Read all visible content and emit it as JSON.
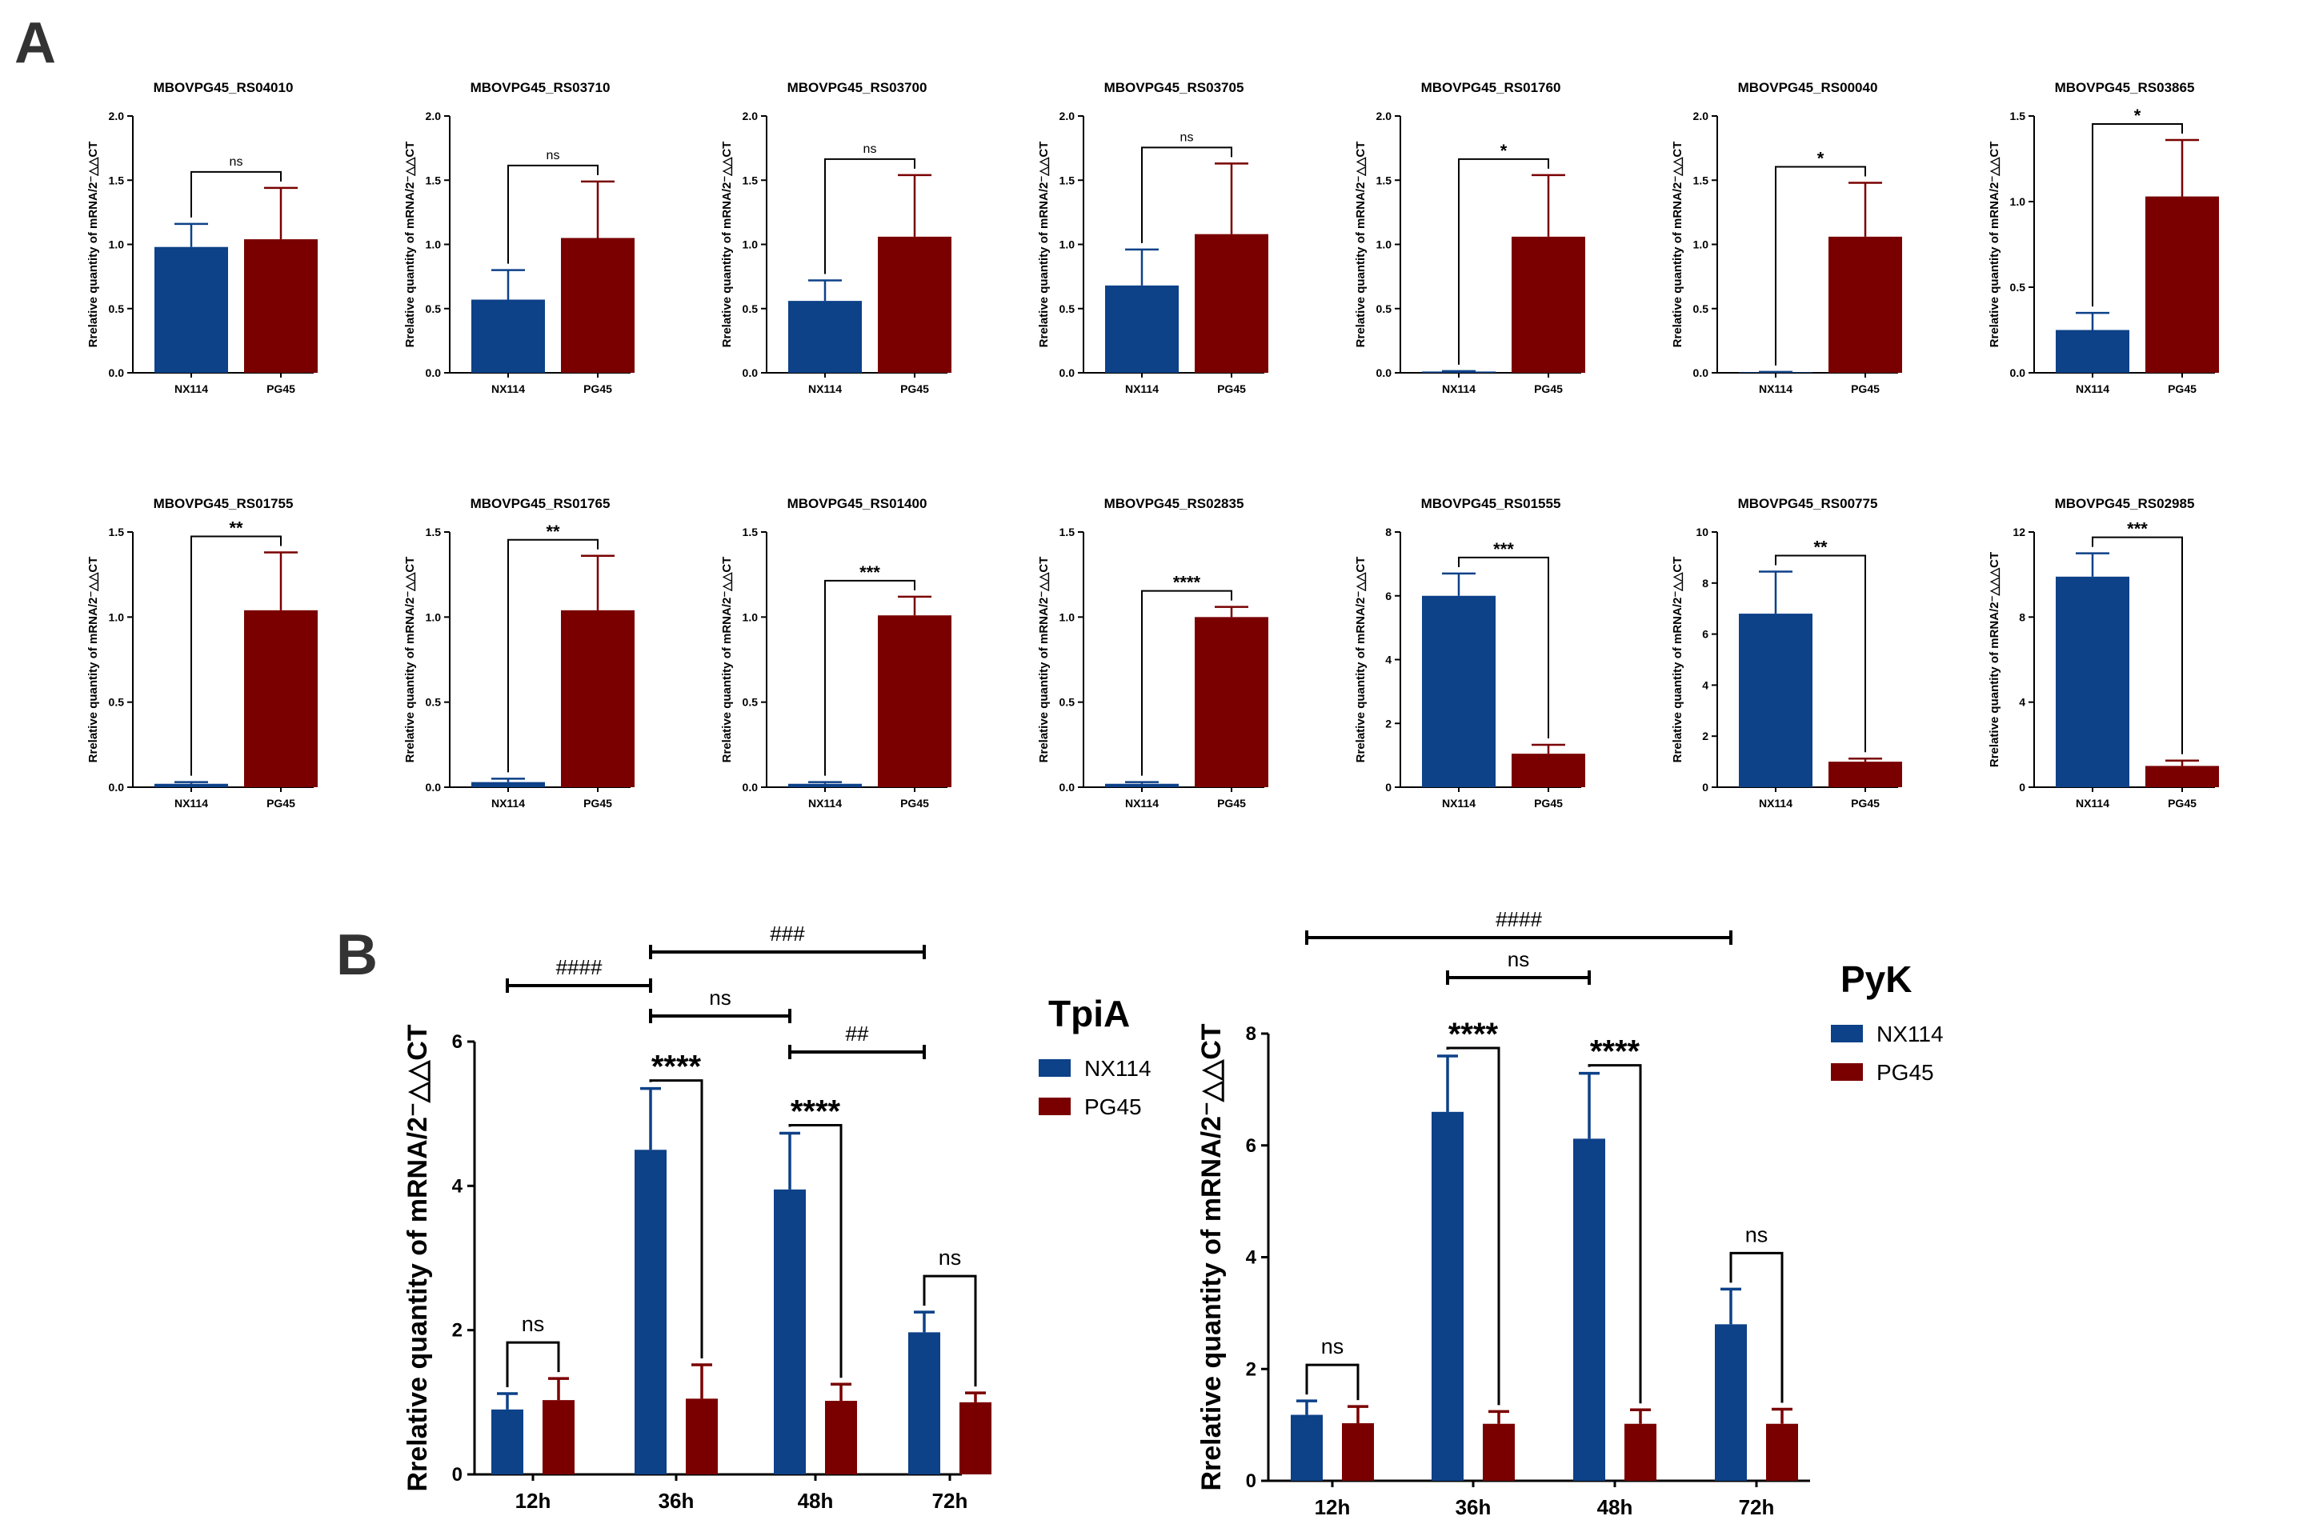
{
  "panel_labels": {
    "a": "A",
    "b": "B"
  },
  "colors": {
    "nx114": "#0d4188",
    "pg45": "#7a0000",
    "axis": "#000000",
    "text": "#000000"
  },
  "chart_data": [
    {
      "type": "bar",
      "title": "MBOVPG45_RS04010",
      "categories": [
        "NX114",
        "PG45"
      ],
      "values": [
        0.98,
        1.04
      ],
      "errors": [
        0.18,
        0.4
      ],
      "ylim": [
        0,
        2.0
      ],
      "yticks": [
        "0.0",
        "0.5",
        "1.0",
        "1.5",
        "2.0"
      ],
      "ylabel": "Rrelative quantity of mRNA/2⁻△△CT",
      "significance": "ns"
    },
    {
      "type": "bar",
      "title": "MBOVPG45_RS03710",
      "categories": [
        "NX114",
        "PG45"
      ],
      "values": [
        0.57,
        1.05
      ],
      "errors": [
        0.23,
        0.44
      ],
      "ylim": [
        0,
        2.0
      ],
      "yticks": [
        "0.0",
        "0.5",
        "1.0",
        "1.5",
        "2.0"
      ],
      "ylabel": "Rrelative quantity of mRNA/2⁻△△CT",
      "significance": "ns"
    },
    {
      "type": "bar",
      "title": "MBOVPG45_RS03700",
      "categories": [
        "NX114",
        "PG45"
      ],
      "values": [
        0.56,
        1.06
      ],
      "errors": [
        0.16,
        0.48
      ],
      "ylim": [
        0,
        2.0
      ],
      "yticks": [
        "0.0",
        "0.5",
        "1.0",
        "1.5",
        "2.0"
      ],
      "ylabel": "Rrelative quantity of mRNA/2⁻△△CT",
      "significance": "ns"
    },
    {
      "type": "bar",
      "title": "MBOVPG45_RS03705",
      "categories": [
        "NX114",
        "PG45"
      ],
      "values": [
        0.68,
        1.08
      ],
      "errors": [
        0.28,
        0.55
      ],
      "ylim": [
        0,
        2.0
      ],
      "yticks": [
        "0.0",
        "0.5",
        "1.0",
        "1.5",
        "2.0"
      ],
      "ylabel": "Rrelative quantity of mRNA/2⁻△△CT",
      "significance": "ns"
    },
    {
      "type": "bar",
      "title": "MBOVPG45_RS01760",
      "categories": [
        "NX114",
        "PG45"
      ],
      "values": [
        0.01,
        1.06
      ],
      "errors": [
        0.003,
        0.48
      ],
      "ylim": [
        0,
        2.0
      ],
      "yticks": [
        "0.0",
        "0.5",
        "1.0",
        "1.5",
        "2.0"
      ],
      "ylabel": "Rrelative quantity of mRNA/2⁻△△CT",
      "significance": "*"
    },
    {
      "type": "bar",
      "title": "MBOVPG45_RS00040",
      "categories": [
        "NX114",
        "PG45"
      ],
      "values": [
        0.005,
        1.06
      ],
      "errors": [
        0.002,
        0.42
      ],
      "ylim": [
        0,
        2.0
      ],
      "yticks": [
        "0.0",
        "0.5",
        "1.0",
        "1.5",
        "2.0"
      ],
      "ylabel": "Rrelative quantity of mRNA/2⁻△△CT",
      "significance": "*"
    },
    {
      "type": "bar",
      "title": "MBOVPG45_RS03865",
      "categories": [
        "NX114",
        "PG45"
      ],
      "values": [
        0.25,
        1.03
      ],
      "errors": [
        0.1,
        0.33
      ],
      "ylim": [
        0,
        1.5
      ],
      "yticks": [
        "0.0",
        "0.5",
        "1.0",
        "1.5"
      ],
      "ylabel": "Rrelative quantity of mRNA/2⁻△△CT",
      "significance": "*"
    },
    {
      "type": "bar",
      "title": "MBOVPG45_RS01755",
      "categories": [
        "NX114",
        "PG45"
      ],
      "values": [
        0.02,
        1.04
      ],
      "errors": [
        0.01,
        0.34
      ],
      "ylim": [
        0,
        1.5
      ],
      "yticks": [
        "0.0",
        "0.5",
        "1.0",
        "1.5"
      ],
      "ylabel": "Rrelative quantity of mRNA/2⁻△△CT",
      "significance": "**"
    },
    {
      "type": "bar",
      "title": "MBOVPG45_RS01765",
      "categories": [
        "NX114",
        "PG45"
      ],
      "values": [
        0.03,
        1.04
      ],
      "errors": [
        0.02,
        0.32
      ],
      "ylim": [
        0,
        1.5
      ],
      "yticks": [
        "0.0",
        "0.5",
        "1.0",
        "1.5"
      ],
      "ylabel": "Rrelative quantity of mRNA/2⁻△△CT",
      "significance": "**"
    },
    {
      "type": "bar",
      "title": "MBOVPG45_RS01400",
      "categories": [
        "NX114",
        "PG45"
      ],
      "values": [
        0.02,
        1.01
      ],
      "errors": [
        0.01,
        0.11
      ],
      "ylim": [
        0,
        1.5
      ],
      "yticks": [
        "0.0",
        "0.5",
        "1.0",
        "1.5"
      ],
      "ylabel": "Rrelative quantity of mRNA/2⁻△△CT",
      "significance": "***"
    },
    {
      "type": "bar",
      "title": "MBOVPG45_RS02835",
      "categories": [
        "NX114",
        "PG45"
      ],
      "values": [
        0.02,
        1.0
      ],
      "errors": [
        0.01,
        0.06
      ],
      "ylim": [
        0,
        1.5
      ],
      "yticks": [
        "0.0",
        "0.5",
        "1.0",
        "1.5"
      ],
      "ylabel": "Rrelative quantity of mRNA/2⁻△△CT",
      "significance": "****"
    },
    {
      "type": "bar",
      "title": "MBOVPG45_RS01555",
      "categories": [
        "NX114",
        "PG45"
      ],
      "values": [
        6.0,
        1.05
      ],
      "errors": [
        0.7,
        0.28
      ],
      "ylim": [
        0,
        8
      ],
      "yticks": [
        "0",
        "2",
        "4",
        "6",
        "8"
      ],
      "ylabel": "Rrelative quantity of mRNA/2⁻△△CT",
      "significance": "***"
    },
    {
      "type": "bar",
      "title": "MBOVPG45_RS00775",
      "categories": [
        "NX114",
        "PG45"
      ],
      "values": [
        6.8,
        1.0
      ],
      "errors": [
        1.65,
        0.12
      ],
      "ylim": [
        0,
        10
      ],
      "yticks": [
        "0",
        "2",
        "4",
        "6",
        "8",
        "10"
      ],
      "ylabel": "Rrelative quantity of mRNA/2⁻△△CT",
      "significance": "**"
    },
    {
      "type": "bar",
      "title": "MBOVPG45_RS02985",
      "categories": [
        "NX114",
        "PG45"
      ],
      "values": [
        9.9,
        1.0
      ],
      "errors": [
        1.1,
        0.25
      ],
      "ylim": [
        0,
        12
      ],
      "yticks": [
        "0",
        "4",
        "8",
        "12"
      ],
      "ylabel": "Rrelative quantity of mRNA/2⁻△△△CT",
      "significance": "***"
    },
    {
      "type": "bar",
      "title": "TpiA",
      "categories": [
        "12h",
        "36h",
        "48h",
        "72h"
      ],
      "series": [
        {
          "name": "NX114",
          "values": [
            0.9,
            4.5,
            3.95,
            1.97
          ],
          "errors": [
            0.22,
            0.85,
            0.78,
            0.28
          ]
        },
        {
          "name": "PG45",
          "values": [
            1.03,
            1.05,
            1.02,
            1.0
          ],
          "errors": [
            0.3,
            0.47,
            0.23,
            0.13
          ]
        }
      ],
      "ylim": [
        0,
        6
      ],
      "yticks": [
        "0",
        "2",
        "4",
        "6"
      ],
      "ylabel": "Rrelative quantity of mRNA/2⁻△△CT",
      "pair_significance": [
        "ns",
        "****",
        "****",
        "ns"
      ],
      "time_comparisons": [
        {
          "from": "12h",
          "to": "36h",
          "label": "####"
        },
        {
          "from": "36h",
          "to": "72h",
          "label": "###"
        },
        {
          "from": "36h",
          "to": "48h",
          "label": "ns"
        },
        {
          "from": "48h",
          "to": "72h",
          "label": "##"
        }
      ]
    },
    {
      "type": "bar",
      "title": "PyK",
      "categories": [
        "12h",
        "36h",
        "48h",
        "72h"
      ],
      "series": [
        {
          "name": "NX114",
          "values": [
            1.18,
            6.6,
            6.12,
            2.8
          ],
          "errors": [
            0.25,
            1.0,
            1.17,
            0.63
          ]
        },
        {
          "name": "PG45",
          "values": [
            1.03,
            1.02,
            1.02,
            1.02
          ],
          "errors": [
            0.3,
            0.22,
            0.25,
            0.26
          ]
        }
      ],
      "ylim": [
        0,
        8
      ],
      "yticks": [
        "0",
        "2",
        "4",
        "6",
        "8"
      ],
      "ylabel": "Rrelative quantity of mRNA/2⁻△△CT",
      "pair_significance": [
        "ns",
        "****",
        "****",
        "ns"
      ],
      "time_comparisons": [
        {
          "from": "12h",
          "to": "72h",
          "label": "####"
        },
        {
          "from": "36h",
          "to": "48h",
          "label": "ns"
        }
      ]
    }
  ]
}
